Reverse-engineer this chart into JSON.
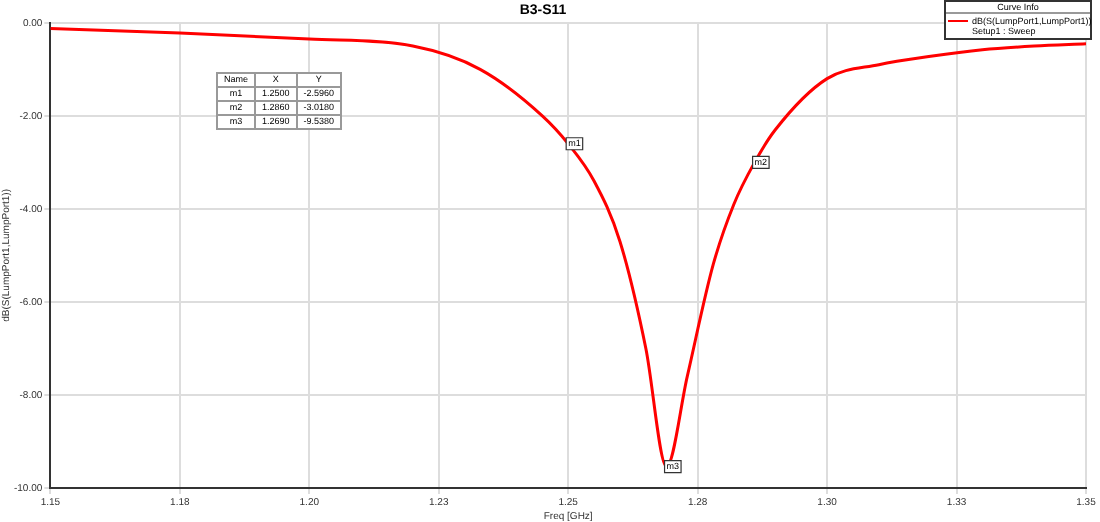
{
  "chart_data": {
    "type": "line",
    "title": "B3-S11",
    "xlabel": "Freq [GHz]",
    "ylabel": "dB(S(LumpPort1,LumpPort1))",
    "legend_title": "Curve Info",
    "legend": "top right",
    "grid": true,
    "marker": "none",
    "line_style": "solid",
    "xlim": [
      1.15,
      1.35
    ],
    "xticks": [
      {
        "value": 1.15,
        "label": "1.15"
      },
      {
        "value": 1.175,
        "label": "1.18"
      },
      {
        "value": 1.2,
        "label": "1.20"
      },
      {
        "value": 1.225,
        "label": "1.23"
      },
      {
        "value": 1.25,
        "label": "1.25"
      },
      {
        "value": 1.275,
        "label": "1.28"
      },
      {
        "value": 1.3,
        "label": "1.30"
      },
      {
        "value": 1.325,
        "label": "1.33"
      },
      {
        "value": 1.35,
        "label": "1.35"
      }
    ],
    "ylim": [
      -10,
      0
    ],
    "yticks": [
      {
        "value": 0,
        "label": "0.00"
      },
      {
        "value": -2,
        "label": "-2.00"
      },
      {
        "value": -4,
        "label": "-4.00"
      },
      {
        "value": -6,
        "label": "-6.00"
      },
      {
        "value": -8,
        "label": "-8.00"
      },
      {
        "value": -10,
        "label": "-10.00"
      }
    ],
    "x": [
      1.15,
      1.175,
      1.2,
      1.22,
      1.233,
      1.245,
      1.25,
      1.255,
      1.26,
      1.265,
      1.269,
      1.273,
      1.278,
      1.282,
      1.286,
      1.29,
      1.3,
      1.31,
      1.32,
      1.33,
      1.34,
      1.35
    ],
    "series": [
      {
        "name": "dB(S(LumpPort1,LumpPort1))\nSetup1 : Sweep",
        "color": "#ff0000",
        "values": [
          -0.12,
          -0.22,
          -0.35,
          -0.5,
          -1.0,
          -2.0,
          -2.6,
          -3.4,
          -4.7,
          -7.0,
          -9.54,
          -7.6,
          -5.2,
          -3.9,
          -3.0,
          -2.3,
          -1.2,
          -0.9,
          -0.72,
          -0.58,
          -0.5,
          -0.45
        ]
      }
    ],
    "annotations": [
      "Name",
      "X",
      "Y",
      "m1",
      "1.2500",
      "-2.5960",
      "m2",
      "1.2860",
      "-3.0180",
      "m3",
      "1.2690",
      "-9.5380",
      {
        "text": "m1",
        "x": 1.25,
        "y": -2.6
      },
      {
        "text": "m2",
        "x": 1.286,
        "y": -3.0
      },
      {
        "text": "m3",
        "x": 1.269,
        "y": -9.54
      }
    ]
  }
}
